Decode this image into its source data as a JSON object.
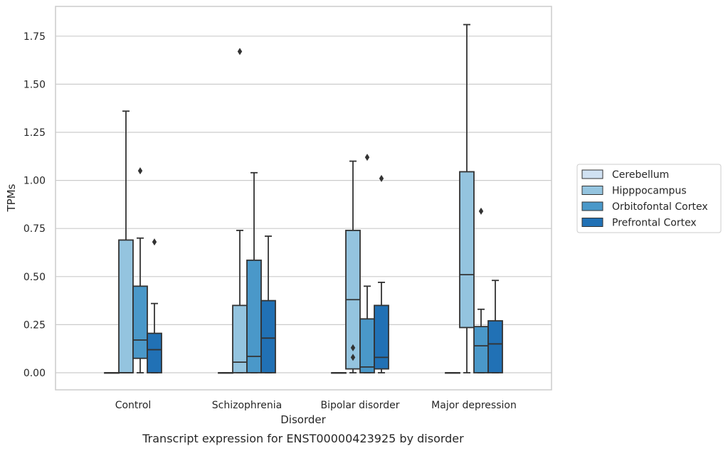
{
  "chart_data": {
    "type": "box",
    "title": "",
    "caption": "Transcript expression for ENST00000423925 by disorder",
    "xlabel": "Disorder",
    "ylabel": "TPMs",
    "ylim": [
      -0.09,
      1.9
    ],
    "yticks": [
      "0.00",
      "0.25",
      "0.50",
      "0.75",
      "1.00",
      "1.25",
      "1.50",
      "1.75"
    ],
    "ytick_values": [
      0,
      0.25,
      0.5,
      0.75,
      1.0,
      1.25,
      1.5,
      1.75
    ],
    "grid": true,
    "legend_position": "right",
    "categories": [
      "Control",
      "Schizophrenia",
      "Bipolar disorder",
      "Major depression"
    ],
    "series": [
      {
        "name": "Cerebellum",
        "color": "#d0e1f2",
        "boxes": [
          {
            "min": 0,
            "q1": 0,
            "median": 0,
            "q3": 0,
            "max": 0,
            "outliers": []
          },
          {
            "min": 0,
            "q1": 0,
            "median": 0,
            "q3": 0,
            "max": 0,
            "outliers": []
          },
          {
            "min": 0,
            "q1": 0,
            "median": 0,
            "q3": 0,
            "max": 0,
            "outliers": []
          },
          {
            "min": 0,
            "q1": 0,
            "median": 0,
            "q3": 0,
            "max": 0,
            "outliers": []
          }
        ]
      },
      {
        "name": "Hipppocampus",
        "color": "#94c4df",
        "boxes": [
          {
            "min": 0,
            "q1": 0,
            "median": 0,
            "q3": 0.69,
            "max": 1.36,
            "outliers": []
          },
          {
            "min": 0,
            "q1": 0,
            "median": 0.055,
            "q3": 0.35,
            "max": 0.74,
            "outliers": [
              1.67
            ]
          },
          {
            "min": 0,
            "q1": 0.02,
            "median": 0.38,
            "q3": 0.74,
            "max": 1.1,
            "outliers": [
              0.08,
              0.13
            ]
          },
          {
            "min": 0,
            "q1": 0.235,
            "median": 0.51,
            "q3": 1.045,
            "max": 1.81,
            "outliers": []
          }
        ]
      },
      {
        "name": "Orbitofontal Cortex",
        "color": "#4a98c9",
        "boxes": [
          {
            "min": 0,
            "q1": 0.075,
            "median": 0.17,
            "q3": 0.45,
            "max": 0.7,
            "outliers": [
              1.05
            ]
          },
          {
            "min": 0,
            "q1": 0,
            "median": 0.085,
            "q3": 0.585,
            "max": 1.04,
            "outliers": []
          },
          {
            "min": 0,
            "q1": 0,
            "median": 0.03,
            "q3": 0.28,
            "max": 0.45,
            "outliers": [
              1.12
            ]
          },
          {
            "min": 0,
            "q1": 0,
            "median": 0.14,
            "q3": 0.24,
            "max": 0.33,
            "outliers": [
              0.84
            ]
          }
        ]
      },
      {
        "name": "Prefrontal Cortex",
        "color": "#2171b5",
        "boxes": [
          {
            "min": 0,
            "q1": 0,
            "median": 0.12,
            "q3": 0.205,
            "max": 0.36,
            "outliers": [
              0.68
            ]
          },
          {
            "min": 0,
            "q1": 0,
            "median": 0.18,
            "q3": 0.375,
            "max": 0.71,
            "outliers": []
          },
          {
            "min": 0,
            "q1": 0.02,
            "median": 0.08,
            "q3": 0.35,
            "max": 0.47,
            "outliers": [
              1.01
            ]
          },
          {
            "min": 0,
            "q1": 0,
            "median": 0.15,
            "q3": 0.27,
            "max": 0.48,
            "outliers": []
          }
        ]
      }
    ]
  }
}
